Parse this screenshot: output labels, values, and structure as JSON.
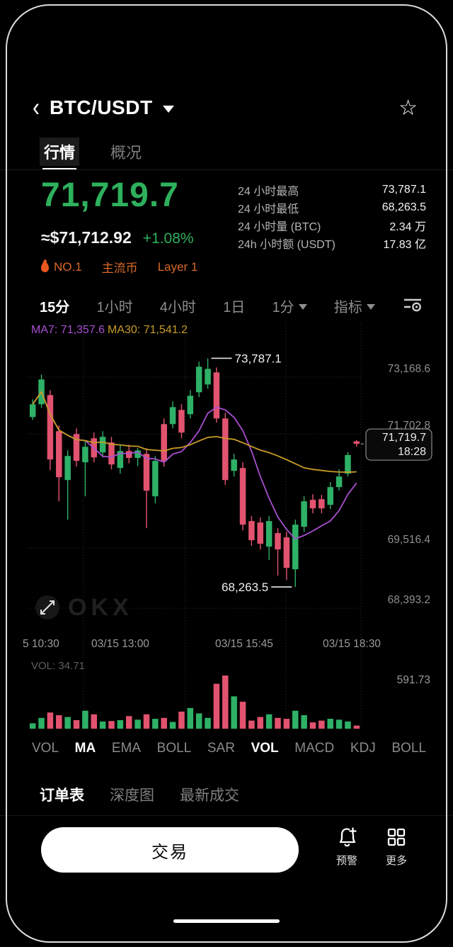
{
  "header": {
    "title": "BTC/USDT",
    "back_icon": "back-chevron",
    "star_icon": "star-outline"
  },
  "tabs": [
    {
      "label": "行情",
      "active": true
    },
    {
      "label": "概况",
      "active": false
    }
  ],
  "price": {
    "last": "71,719.7",
    "fiat": "≈$71,712.92",
    "change": "+1.08%"
  },
  "badges": [
    {
      "label": "NO.1",
      "icon": "flame-icon"
    },
    {
      "label": "主流币"
    },
    {
      "label": "Layer 1"
    }
  ],
  "stats": [
    {
      "label": "24 小时最高",
      "value": "73,787.1"
    },
    {
      "label": "24 小时最低",
      "value": "68,263.5"
    },
    {
      "label": "24 小时量 (BTC)",
      "value": "2.34 万"
    },
    {
      "label": "24h 小时额 (USDT)",
      "value": "17.83 亿"
    }
  ],
  "timeframes": [
    {
      "label": "15分",
      "active": true
    },
    {
      "label": "1小时",
      "active": false
    },
    {
      "label": "4小时",
      "active": false
    },
    {
      "label": "1日",
      "active": false
    },
    {
      "label": "1分",
      "active": false,
      "dropdown": true
    },
    {
      "label": "指标",
      "active": false,
      "dropdown": true
    }
  ],
  "chart_data": {
    "type": "candlestick",
    "interval": "15m",
    "ma7_label": "MA7: 71,357.6",
    "ma30_label": "MA30: 71,541.2",
    "ma7_color": "#a94fd1",
    "ma30_color": "#c79b27",
    "up_color": "#2eb167",
    "down_color": "#e25370",
    "high_annotation": "73,787.1",
    "low_annotation": "68,263.5",
    "last_price": "71,719.7",
    "last_time": "18:28",
    "y_axis_labels": [
      "73,168.6",
      "71,702.8",
      "69,516.4",
      "68,393.2"
    ],
    "x_labels": [
      "5 10:30",
      "03/15 13:00",
      "03/15 15:45",
      "03/15 18:30"
    ],
    "y_range": {
      "top": 74650,
      "bottom": 67203
    },
    "vol_label": "VOL: 34.71",
    "vol_axis_max_label": "591.73",
    "vol_max": 591.73,
    "watermark": "OKX",
    "candles_ohlcv": [
      [
        72367.8,
        72795.3,
        72299.4,
        72675.6,
        60
      ],
      [
        72675.6,
        73393.8,
        72590.1,
        73274.1,
        120
      ],
      [
        72897.9,
        73017.6,
        71085.3,
        71341.8,
        180
      ],
      [
        72025.8,
        72162.6,
        70332.9,
        70914.3,
        150
      ],
      [
        70845.9,
        71564.1,
        69888.3,
        71427.3,
        130
      ],
      [
        71957.4,
        72094.2,
        71170.8,
        71307.6,
        95
      ],
      [
        71273.4,
        71786.4,
        70452.6,
        71649.6,
        200
      ],
      [
        71854.8,
        71991.6,
        71273.4,
        71393.1,
        160
      ],
      [
        71512.8,
        72025.8,
        71393.1,
        71889.0,
        80
      ],
      [
        71752.2,
        71889.0,
        71102.4,
        71222.1,
        85
      ],
      [
        71136.6,
        71683.8,
        70999.8,
        71547.0,
        95
      ],
      [
        71547.0,
        71700.0,
        71250.0,
        71380.0,
        140
      ],
      [
        71380.0,
        71620.0,
        71180.0,
        71560.0,
        100
      ],
      [
        71478.6,
        71615.4,
        69683.1,
        70589.4,
        160
      ],
      [
        70452.6,
        71427.3,
        70281.6,
        71307.6,
        110
      ],
      [
        72196.8,
        72333.6,
        71170.8,
        71307.6,
        120
      ],
      [
        72196.8,
        72744.0,
        72094.2,
        72607.2,
        75
      ],
      [
        72538.8,
        72675.6,
        71854.8,
        71991.6,
        190
      ],
      [
        72436.2,
        73017.6,
        72333.6,
        72880.8,
        230
      ],
      [
        72966.3,
        73701.6,
        72846.6,
        73581.9,
        170
      ],
      [
        73154.4,
        73787.1,
        73051.8,
        73530.6,
        120
      ],
      [
        73445.1,
        73564.8,
        72231.0,
        72333.6,
        500
      ],
      [
        72333.6,
        72470.4,
        70726.2,
        70845.9,
        591.73
      ],
      [
        71068.2,
        71478.6,
        70931.4,
        71341.8,
        360
      ],
      [
        71136.6,
        71273.4,
        69631.8,
        69768.6,
        300
      ],
      [
        69854.1,
        69973.8,
        69255.6,
        69392.4,
        90
      ],
      [
        69819.9,
        69939.6,
        69170.1,
        69306.9,
        130
      ],
      [
        69238.5,
        69973.8,
        68913.6,
        69854.1,
        160
      ],
      [
        69563.4,
        69683.1,
        68537.4,
        69170.1,
        120
      ],
      [
        69460.8,
        69597.6,
        68434.8,
        68725.5,
        110
      ],
      [
        68691.3,
        69888.3,
        68263.5,
        69768.6,
        200
      ],
      [
        69717.3,
        70452.6,
        69597.6,
        70332.9,
        150
      ],
      [
        70367.1,
        70503.9,
        70042.2,
        70161.9,
        70
      ],
      [
        70384.2,
        70486.8,
        70042.2,
        70161.9,
        90
      ],
      [
        70247.4,
        70794.6,
        70144.8,
        70675.2,
        110
      ],
      [
        70675.2,
        71102.4,
        70589.4,
        70931.4,
        100
      ],
      [
        70999.8,
        71520.0,
        70931.4,
        71450.0,
        80
      ],
      [
        71780.0,
        71810.0,
        71650.0,
        71719.7,
        34.71
      ]
    ]
  },
  "indicator_tabs": [
    {
      "label": "VOL",
      "active": false
    },
    {
      "label": "MA",
      "active": true
    },
    {
      "label": "EMA",
      "active": false
    },
    {
      "label": "BOLL",
      "active": false
    },
    {
      "label": "SAR",
      "active": false
    },
    {
      "label": "VOL",
      "active": true
    },
    {
      "label": "MACD",
      "active": false
    },
    {
      "label": "KDJ",
      "active": false
    },
    {
      "label": "BOLL",
      "active": false
    }
  ],
  "bottom_tabs": [
    {
      "label": "订单表",
      "active": true
    },
    {
      "label": "深度图",
      "active": false
    },
    {
      "label": "最新成交",
      "active": false
    }
  ],
  "actions": {
    "trade_label": "交易",
    "alert_label": "预警",
    "more_label": "更多"
  }
}
